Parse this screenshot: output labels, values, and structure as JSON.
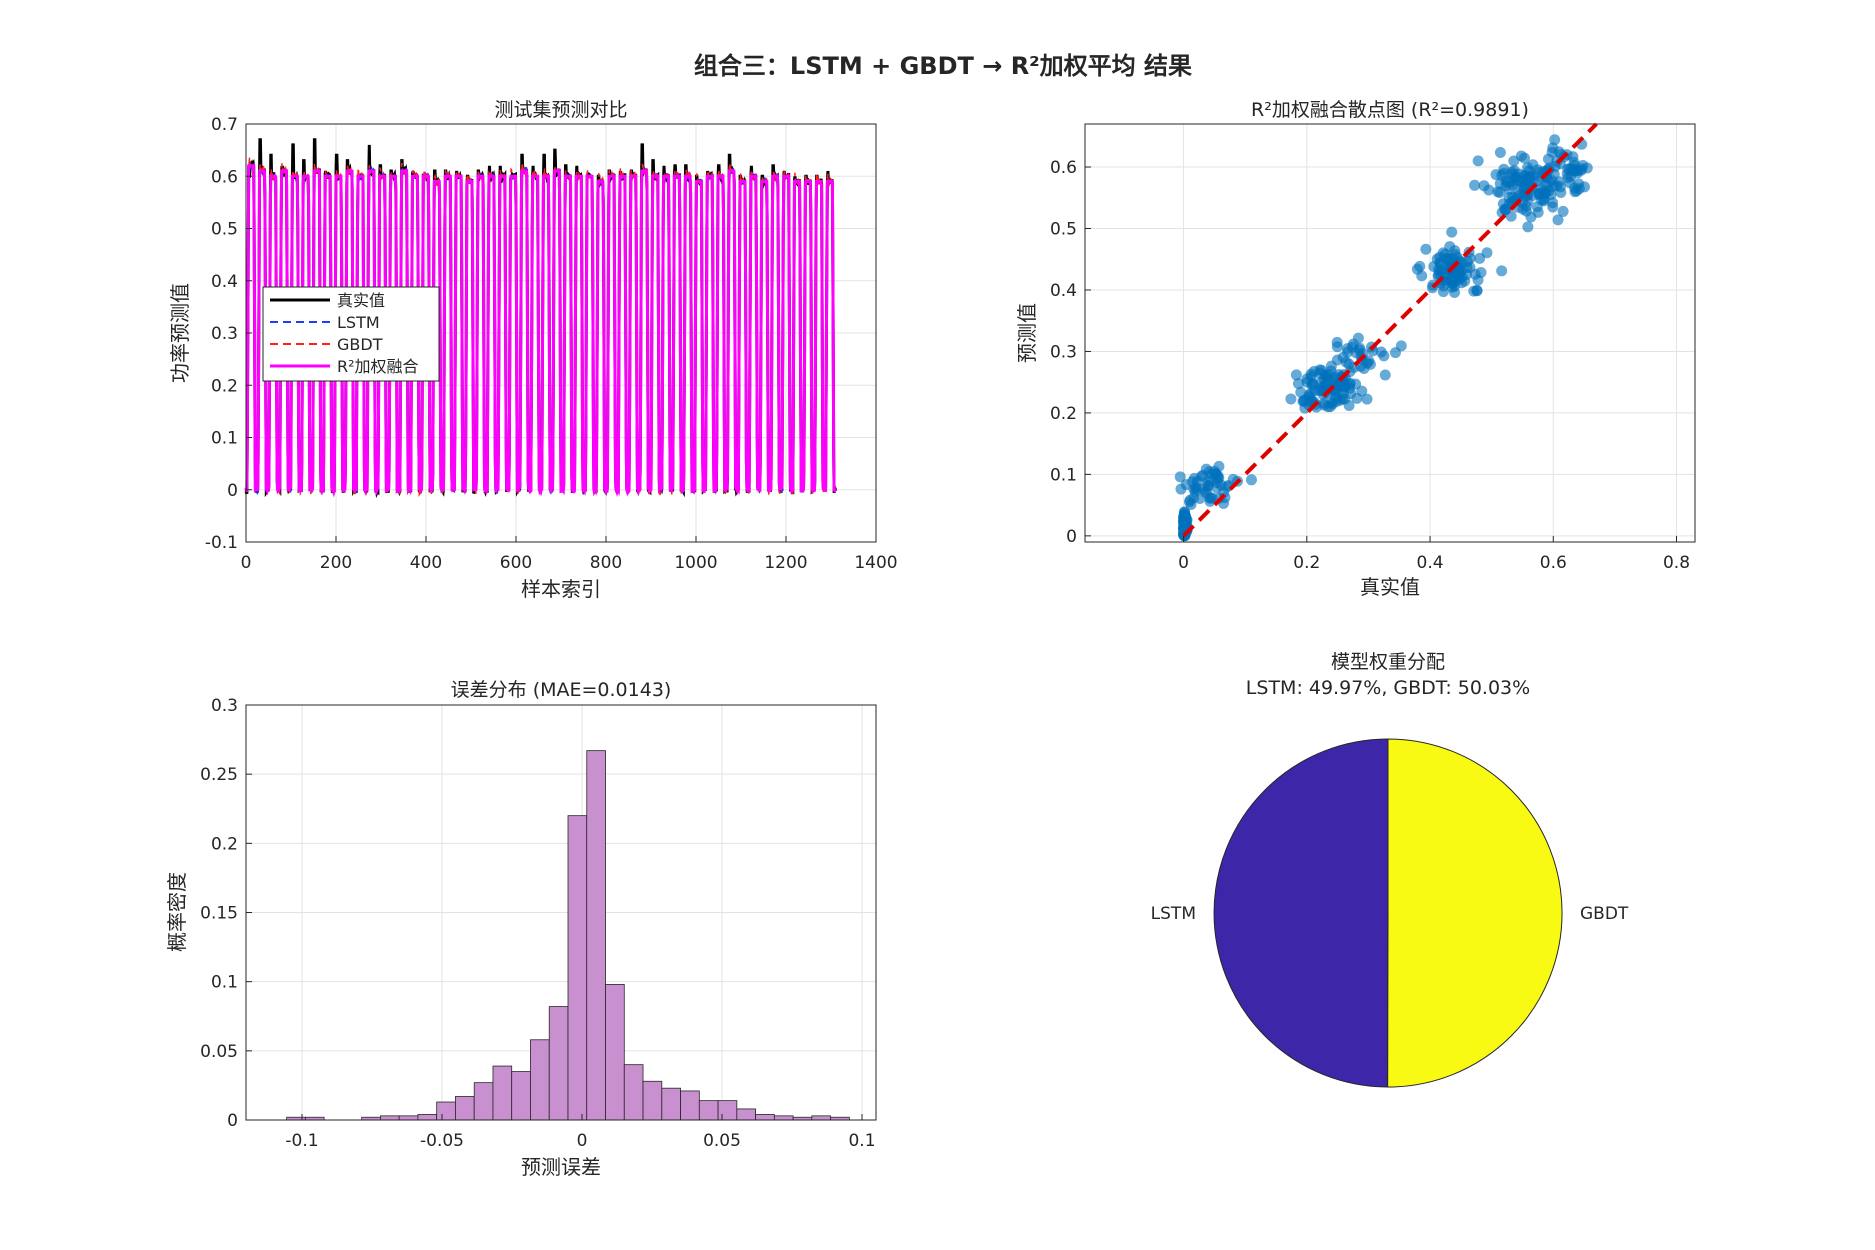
{
  "figure": {
    "suptitle": "组合三：LSTM + GBDT → R²加权平均 结果"
  },
  "chart_data": [
    {
      "id": "prediction-compare",
      "type": "line",
      "title": "测试集预测对比",
      "xlabel": "样本索引",
      "ylabel": "功率预测值",
      "xlim": [
        0,
        1400
      ],
      "ylim": [
        -0.1,
        0.7
      ],
      "xticks": [
        "0",
        "200",
        "400",
        "600",
        "800",
        "1000",
        "1200",
        "1400"
      ],
      "yticks": [
        "-0.1",
        "0",
        "0.1",
        "0.2",
        "0.3",
        "0.4",
        "0.5",
        "0.6",
        "0.7"
      ],
      "grid": true,
      "legend_position": "middle-left",
      "n_samples": 1310,
      "n_cycles": 54,
      "cycle_peaks_true": [
        0.6,
        0.67,
        0.64,
        0.62,
        0.66,
        0.63,
        0.67,
        0.61,
        0.64,
        0.63,
        0.6,
        0.66,
        0.62,
        0.61,
        0.63,
        0.61,
        0.6,
        0.61,
        0.61,
        0.61,
        0.6,
        0.61,
        0.62,
        0.62,
        0.6,
        0.64,
        0.62,
        0.64,
        0.65,
        0.62,
        0.62,
        0.6,
        0.6,
        0.61,
        0.61,
        0.61,
        0.66,
        0.63,
        0.62,
        0.62,
        0.62,
        0.6,
        0.61,
        0.62,
        0.64,
        0.6,
        0.62,
        0.6,
        0.62,
        0.61,
        0.6,
        0.6,
        0.6,
        0.61
      ],
      "cycle_peaks_fused": [
        0.62,
        0.61,
        0.6,
        0.61,
        0.6,
        0.6,
        0.61,
        0.6,
        0.6,
        0.61,
        0.6,
        0.61,
        0.6,
        0.6,
        0.61,
        0.6,
        0.6,
        0.59,
        0.6,
        0.6,
        0.59,
        0.6,
        0.6,
        0.6,
        0.6,
        0.61,
        0.6,
        0.6,
        0.61,
        0.6,
        0.6,
        0.6,
        0.59,
        0.6,
        0.6,
        0.6,
        0.61,
        0.6,
        0.6,
        0.6,
        0.6,
        0.59,
        0.6,
        0.6,
        0.61,
        0.59,
        0.6,
        0.59,
        0.6,
        0.6,
        0.59,
        0.59,
        0.59,
        0.59
      ],
      "series": [
        {
          "name": "真实值",
          "color": "#000000",
          "style": "solid"
        },
        {
          "name": "LSTM",
          "color": "#1f3bff",
          "style": "dashed"
        },
        {
          "name": "GBDT",
          "color": "#ff2020",
          "style": "dashed"
        },
        {
          "name": "R²加权融合",
          "color": "#ff00ff",
          "style": "solid"
        }
      ]
    },
    {
      "id": "fusion-scatter",
      "type": "scatter",
      "title": "R²加权融合散点图 (R²=0.9891)",
      "xlabel": "真实值",
      "ylabel": "预测值",
      "xlim": [
        -0.16,
        0.83
      ],
      "ylim": [
        -0.01,
        0.67
      ],
      "xticks": [
        "0",
        "0.2",
        "0.4",
        "0.6",
        "0.8"
      ],
      "yticks": [
        "0",
        "0.1",
        "0.2",
        "0.3",
        "0.4",
        "0.5",
        "0.6"
      ],
      "grid": true,
      "point_color": "#0072BD",
      "reference_line": {
        "x": [
          0,
          0.67
        ],
        "y": [
          0,
          0.67
        ],
        "color": "#e00000",
        "style": "dashed"
      },
      "clusters": [
        {
          "cx": 0.0,
          "cy": 0.015,
          "sx": 0.004,
          "sy": 0.012,
          "n": 140
        },
        {
          "cx": 0.045,
          "cy": 0.085,
          "sx": 0.025,
          "sy": 0.02,
          "n": 50
        },
        {
          "cx": 0.24,
          "cy": 0.24,
          "sx": 0.025,
          "sy": 0.02,
          "n": 100
        },
        {
          "cx": 0.29,
          "cy": 0.295,
          "sx": 0.03,
          "sy": 0.015,
          "n": 25
        },
        {
          "cx": 0.44,
          "cy": 0.43,
          "sx": 0.025,
          "sy": 0.022,
          "n": 90
        },
        {
          "cx": 0.56,
          "cy": 0.565,
          "sx": 0.035,
          "sy": 0.025,
          "n": 120
        },
        {
          "cx": 0.61,
          "cy": 0.6,
          "sx": 0.025,
          "sy": 0.018,
          "n": 40
        }
      ]
    },
    {
      "id": "error-histogram",
      "type": "bar",
      "title": "误差分布 (MAE=0.0143)",
      "xlabel": "预测误差",
      "ylabel": "概率密度",
      "xlim": [
        -0.12,
        0.105
      ],
      "ylim": [
        0,
        0.3
      ],
      "xticks": [
        "-0.1",
        "-0.05",
        "0",
        "0.05",
        "0.1"
      ],
      "yticks": [
        "0",
        "0.05",
        "0.1",
        "0.15",
        "0.2",
        "0.25",
        "0.3"
      ],
      "grid": true,
      "bar_color": "#c990d0",
      "bin_edges": [
        -0.1055,
        -0.0988,
        -0.0921,
        -0.0854,
        -0.0787,
        -0.072,
        -0.0653,
        -0.0586,
        -0.0519,
        -0.0452,
        -0.0385,
        -0.0318,
        -0.0251,
        -0.0184,
        -0.0117,
        -0.005,
        0.0017,
        0.0084,
        0.0151,
        0.0218,
        0.0285,
        0.0352,
        0.0419,
        0.0486,
        0.0553,
        0.062,
        0.0687,
        0.0754,
        0.0821,
        0.0888,
        0.0955
      ],
      "values": [
        0.002,
        0.002,
        0.0,
        0.0,
        0.002,
        0.003,
        0.003,
        0.004,
        0.013,
        0.017,
        0.027,
        0.039,
        0.035,
        0.058,
        0.082,
        0.22,
        0.267,
        0.098,
        0.04,
        0.028,
        0.023,
        0.021,
        0.014,
        0.014,
        0.008,
        0.004,
        0.003,
        0.002,
        0.003,
        0.002
      ]
    },
    {
      "id": "weight-pie",
      "type": "pie",
      "title": "模型权重分配",
      "subtitle": "LSTM: 49.97%, GBDT: 50.03%",
      "slices": [
        {
          "label": "LSTM",
          "value": 49.97,
          "color": "#3d26a8"
        },
        {
          "label": "GBDT",
          "value": 50.03,
          "color": "#f8fa14"
        }
      ]
    }
  ]
}
